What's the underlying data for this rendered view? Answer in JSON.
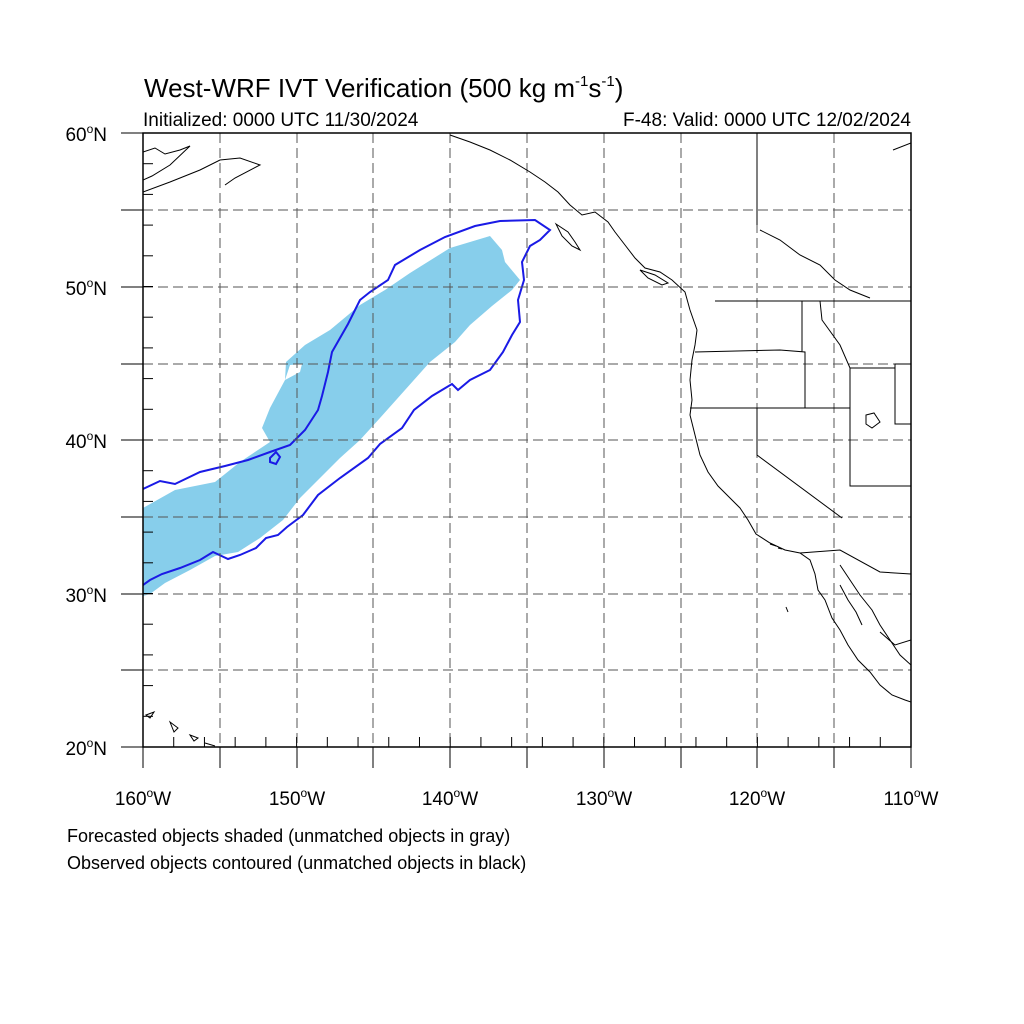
{
  "title": {
    "main": "West-WRF IVT Verification (500 kg m",
    "sup1": "-1",
    "mid": "s",
    "sup2": "-1",
    "end": ")"
  },
  "subtitle": {
    "initialized": "Initialized: 0000 UTC 11/30/2024",
    "valid": "F-48: Valid: 0000 UTC 12/02/2024"
  },
  "map": {
    "lon_range": [
      -160,
      -110
    ],
    "lat_range": [
      20,
      60
    ],
    "gridlines": "dashed",
    "lat_labels": [
      {
        "value": "60",
        "hemi": "N"
      },
      {
        "value": "50",
        "hemi": "N"
      },
      {
        "value": "40",
        "hemi": "N"
      },
      {
        "value": "30",
        "hemi": "N"
      },
      {
        "value": "20",
        "hemi": "N"
      }
    ],
    "lon_labels": [
      {
        "value": "160",
        "hemi": "W"
      },
      {
        "value": "150",
        "hemi": "W"
      },
      {
        "value": "140",
        "hemi": "W"
      },
      {
        "value": "130",
        "hemi": "W"
      },
      {
        "value": "120",
        "hemi": "W"
      },
      {
        "value": "110",
        "hemi": "W"
      }
    ]
  },
  "colors": {
    "forecast_fill": "#87ceeb",
    "observed_contour": "#1a1ae6",
    "coastline": "#000000",
    "grid": "#555555"
  },
  "notes": {
    "line1": "Forecasted objects shaded (unmatched objects in gray)",
    "line2": "Observed objects contoured (unmatched objects in black)"
  }
}
